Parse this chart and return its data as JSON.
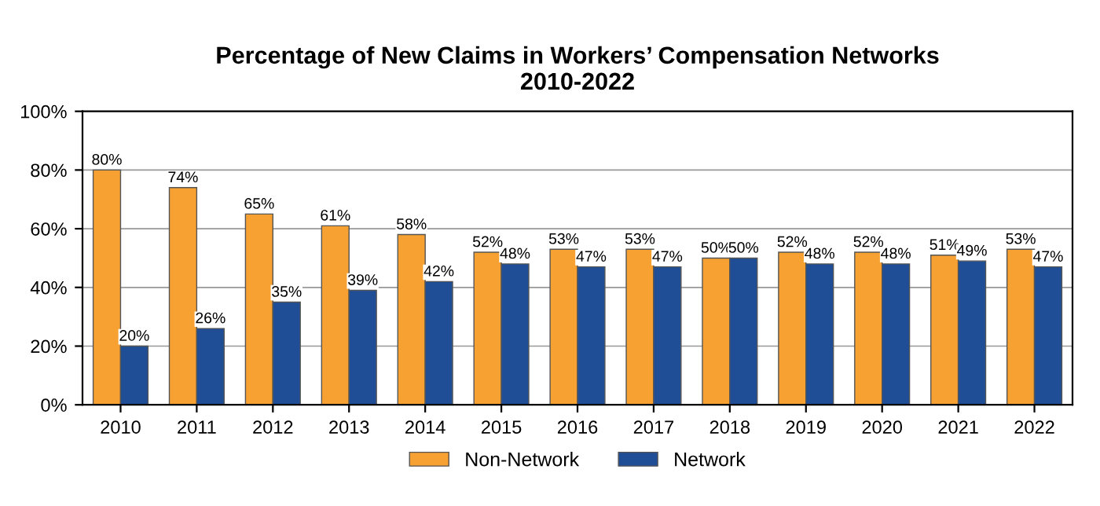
{
  "chart_data": {
    "type": "bar",
    "title": "Percentage of New Claims in Workers’ Compensation Networks\n2010-2022",
    "categories": [
      "2010",
      "2011",
      "2012",
      "2013",
      "2014",
      "2015",
      "2016",
      "2017",
      "2018",
      "2019",
      "2020",
      "2021",
      "2022"
    ],
    "series": [
      {
        "name": "Non-Network",
        "color": "#f7a133",
        "values": [
          80,
          74,
          65,
          61,
          58,
          52,
          53,
          53,
          50,
          52,
          52,
          51,
          53
        ],
        "value_labels": [
          "80%",
          "74%",
          "65%",
          "61%",
          "58%",
          "52%",
          "53%",
          "53%",
          "50%",
          "52%",
          "52%",
          "51%",
          "53%"
        ]
      },
      {
        "name": "Network",
        "color": "#1f4e96",
        "values": [
          20,
          26,
          35,
          39,
          42,
          48,
          47,
          47,
          50,
          48,
          48,
          49,
          47
        ],
        "value_labels": [
          "20%",
          "26%",
          "35%",
          "39%",
          "42%",
          "48%",
          "47%",
          "47%",
          "50%",
          "48%",
          "48%",
          "49%",
          "47%"
        ]
      }
    ],
    "ylim": [
      0,
      100
    ],
    "yticks": [
      {
        "value": 0,
        "label": "0%"
      },
      {
        "value": 20,
        "label": "20%"
      },
      {
        "value": 40,
        "label": "40%"
      },
      {
        "value": 60,
        "label": "60%"
      },
      {
        "value": 80,
        "label": "80%"
      },
      {
        "value": 100,
        "label": "100%"
      }
    ],
    "grid": "y",
    "legend": "bottom"
  }
}
